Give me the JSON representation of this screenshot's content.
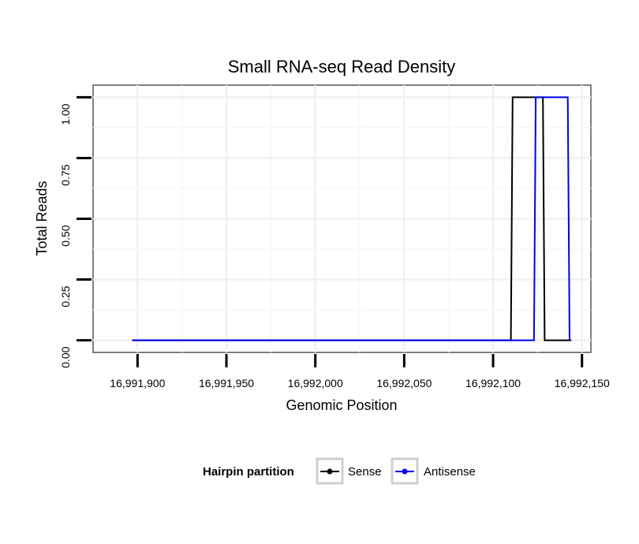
{
  "chart_data": {
    "type": "line",
    "title": "Small RNA-seq Read Density",
    "xlabel": "Genomic Position",
    "ylabel": "Total Reads",
    "xlim": [
      16991875,
      16992155
    ],
    "ylim": [
      -0.05,
      1.05
    ],
    "x_ticks": [
      16991900,
      16991950,
      16992000,
      16992050,
      16992100,
      16992150
    ],
    "x_tick_labels": [
      "16,991,900",
      "16,991,950",
      "16,992,000",
      "16,992,050",
      "16,992,100",
      "16,992,150"
    ],
    "y_ticks": [
      0,
      0.25,
      0.5,
      0.75,
      1.0
    ],
    "y_tick_labels": [
      "0.00",
      "0.25",
      "0.50",
      "0.75",
      "1.00"
    ],
    "grid": true,
    "legend": {
      "title": "Hairpin partition",
      "placement": "bottom"
    },
    "series": [
      {
        "name": "Sense",
        "color": "#000000",
        "x": [
          16991897,
          16992110,
          16992111,
          16992128,
          16992129,
          16992144
        ],
        "y": [
          0,
          0,
          1,
          1,
          0,
          0
        ]
      },
      {
        "name": "Antisense",
        "color": "#0000ee",
        "x": [
          16991897,
          16992123,
          16992124,
          16992142,
          16992143
        ],
        "y": [
          0,
          0,
          1,
          1,
          0
        ]
      }
    ]
  }
}
